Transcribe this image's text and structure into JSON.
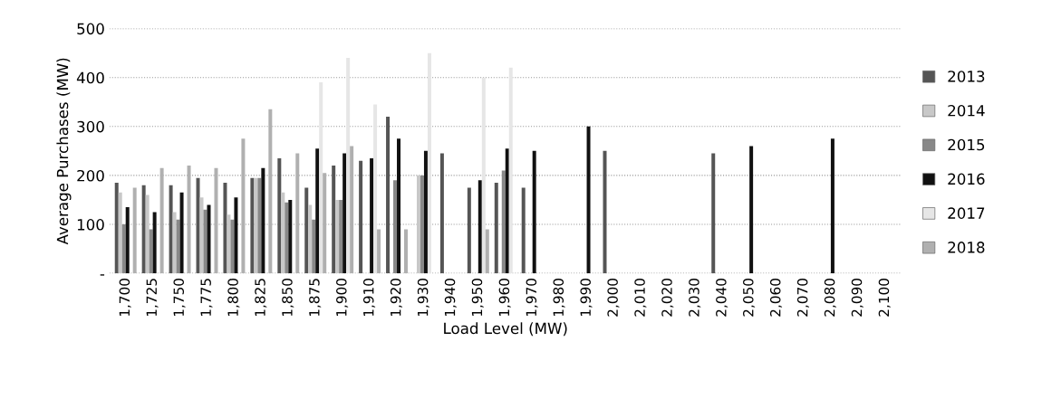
{
  "chart_data": {
    "type": "bar",
    "xlabel": "Load Level (MW)",
    "ylabel": "Average Purchases (MW)",
    "categories": [
      "1,700",
      "1,725",
      "1,750",
      "1,775",
      "1,800",
      "1,825",
      "1,850",
      "1,875",
      "1,900",
      "1,910",
      "1,920",
      "1,930",
      "1,940",
      "1,950",
      "1,960",
      "1,970",
      "1,980",
      "1,990",
      "2,000",
      "2,010",
      "2,020",
      "2,030",
      "2,040",
      "2,050",
      "2,060",
      "2,070",
      "2,080",
      "2,090",
      "2,100"
    ],
    "series": [
      {
        "name": "2013",
        "color": "#555555",
        "values": [
          185,
          180,
          180,
          195,
          185,
          195,
          235,
          175,
          220,
          230,
          320,
          null,
          245,
          175,
          185,
          175,
          null,
          null,
          250,
          null,
          null,
          null,
          245,
          null,
          null,
          null,
          null,
          null,
          null
        ]
      },
      {
        "name": "2014",
        "color": "#c8c8c8",
        "values": [
          165,
          160,
          125,
          155,
          120,
          195,
          165,
          140,
          150,
          null,
          null,
          200,
          null,
          null,
          null,
          null,
          null,
          null,
          null,
          null,
          null,
          null,
          null,
          null,
          null,
          null,
          null,
          null,
          null
        ]
      },
      {
        "name": "2015",
        "color": "#888888",
        "values": [
          100,
          90,
          110,
          130,
          110,
          195,
          145,
          110,
          150,
          null,
          190,
          200,
          null,
          null,
          210,
          null,
          null,
          null,
          null,
          null,
          null,
          null,
          null,
          null,
          null,
          null,
          null,
          null,
          null
        ]
      },
      {
        "name": "2016",
        "color": "#111111",
        "values": [
          135,
          125,
          165,
          140,
          155,
          215,
          150,
          255,
          245,
          235,
          275,
          250,
          null,
          190,
          255,
          250,
          null,
          300,
          null,
          null,
          null,
          null,
          null,
          260,
          null,
          null,
          275,
          null,
          null
        ]
      },
      {
        "name": "2017",
        "color": "#e6e6e6",
        "values": [
          null,
          null,
          null,
          null,
          null,
          null,
          null,
          390,
          440,
          345,
          null,
          450,
          null,
          400,
          420,
          null,
          null,
          null,
          null,
          null,
          null,
          null,
          null,
          null,
          null,
          null,
          null,
          null,
          null
        ]
      },
      {
        "name": "2018",
        "color": "#b0b0b0",
        "values": [
          175,
          215,
          220,
          215,
          275,
          335,
          245,
          205,
          260,
          90,
          90,
          null,
          null,
          90,
          null,
          null,
          null,
          null,
          null,
          null,
          null,
          null,
          null,
          null,
          null,
          null,
          null,
          null,
          null
        ]
      }
    ],
    "ylim": [
      0,
      500
    ],
    "yticks": [
      {
        "value": 0,
        "label": "-"
      },
      100,
      200,
      300,
      400,
      500
    ],
    "grid": "y",
    "legend": "right"
  }
}
